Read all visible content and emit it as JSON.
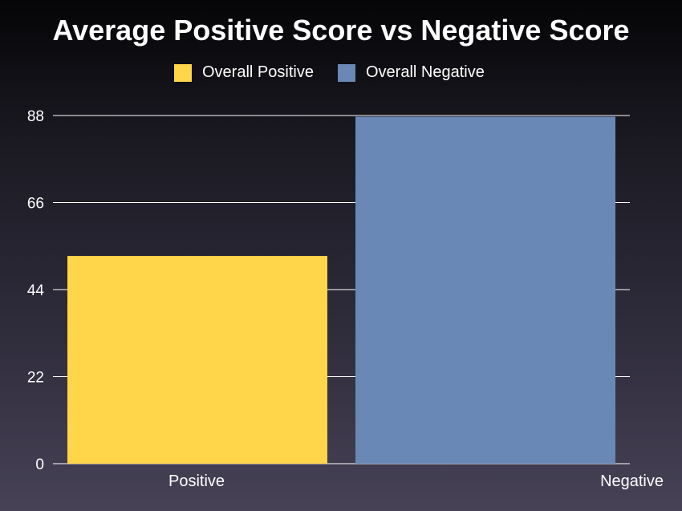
{
  "chart_data": {
    "type": "bar",
    "title": "Average Positive Score vs Negative Score",
    "categories": [
      "Positive",
      "Negative"
    ],
    "series": [
      {
        "name": "Overall Positive",
        "color": "#ffd54a",
        "values": [
          52.5,
          null
        ]
      },
      {
        "name": "Overall Negative",
        "color": "#6a88b6",
        "values": [
          null,
          87.7
        ]
      }
    ],
    "values": [
      52.5,
      87.7
    ],
    "ylim": [
      0,
      88
    ],
    "yticks": [
      "0",
      "22",
      "44",
      "66",
      "88"
    ],
    "grid": true,
    "legend_position": "top-center",
    "xlabel": "",
    "ylabel": ""
  }
}
